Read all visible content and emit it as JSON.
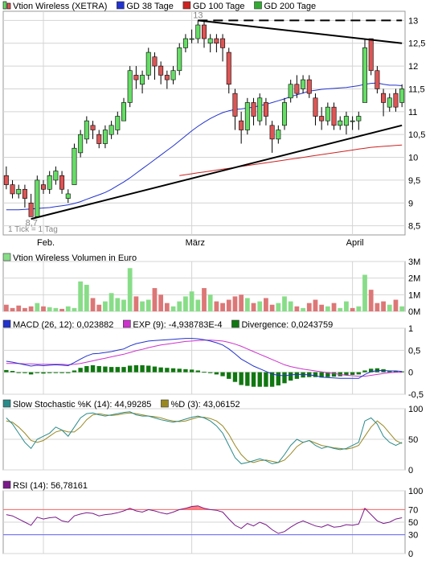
{
  "colors": {
    "up": "#66dd66",
    "down": "#dd5555",
    "gd38": "#2233cc",
    "gd100": "#cc2222",
    "gd200": "#33aa33",
    "grid": "#d4d4d4",
    "volume_up": "#88dd88",
    "volume_down": "#dd7777",
    "macd": "#2233cc",
    "exp": "#cc33cc",
    "divergence": "#117711",
    "slow_k": "#2a8a8a",
    "slow_d": "#998822",
    "rsi": "#7a1a8a",
    "rsi_overbought": "#ff6666",
    "rsi_oversold": "#6666ff"
  },
  "price_panel": {
    "legend": [
      {
        "label": "Vtion Wireless (XETRA)",
        "icon": "candle-legend-icon"
      },
      {
        "label": "GD 38 Tage",
        "color": "#2233cc"
      },
      {
        "label": "GD 100 Tage",
        "color": "#cc2222"
      },
      {
        "label": "GD 200 Tage",
        "color": "#33aa33"
      }
    ],
    "note": "1 Tick = 1 Tag",
    "low_label": "8,7",
    "high_label": "13",
    "y_ticks": [
      "13",
      "12,5",
      "12",
      "11,5",
      "11",
      "10,5",
      "10",
      "9,5",
      "9",
      "8,5"
    ],
    "x_labels": [
      "Feb.",
      "März",
      "April"
    ]
  },
  "volume_panel": {
    "title": "Vtion Wireless Volumen in Euro",
    "y_ticks": [
      "3M",
      "2M",
      "1M",
      "0M"
    ]
  },
  "macd_panel": {
    "legend": [
      {
        "label": "MACD (26, 12): 0,023882",
        "color": "#2233cc"
      },
      {
        "label": "EXP (9): -4,938783E-4",
        "color": "#cc33cc"
      },
      {
        "label": "Divergence: 0,0243759",
        "color": "#117711"
      }
    ],
    "y_ticks": [
      "1",
      "0,5",
      "0",
      "-0,5"
    ]
  },
  "stoch_panel": {
    "legend": [
      {
        "label": "Slow Stochastic %K (14): 44,99285",
        "color": "#2a8a8a"
      },
      {
        "label": "%D (3): 43,06152",
        "color": "#998822"
      }
    ],
    "y_ticks": [
      "100",
      "50",
      "0"
    ]
  },
  "rsi_panel": {
    "legend": [
      {
        "label": "RSI (14): 56,78161",
        "color": "#7a1a8a"
      }
    ],
    "y_ticks": [
      "100",
      "70",
      "50",
      "30",
      "0"
    ]
  },
  "chart_data": {
    "type": "candlestick",
    "price": {
      "ylim": [
        8.3,
        13.2
      ],
      "x_labels": [
        {
          "label": "Feb.",
          "index": 6
        },
        {
          "label": "März",
          "index": 30
        },
        {
          "label": "April",
          "index": 56
        }
      ],
      "candles": [
        [
          9.6,
          9.4,
          9.8,
          9.3
        ],
        [
          9.4,
          9.2,
          9.5,
          9.1
        ],
        [
          9.2,
          9.3,
          9.4,
          9.1
        ],
        [
          9.3,
          9.1,
          9.4,
          8.9
        ],
        [
          9.0,
          8.7,
          9.2,
          8.7
        ],
        [
          8.7,
          9.5,
          9.6,
          8.7
        ],
        [
          9.4,
          9.3,
          9.5,
          9.2
        ],
        [
          9.3,
          9.6,
          9.7,
          9.2
        ],
        [
          9.5,
          9.7,
          9.8,
          9.4
        ],
        [
          9.6,
          9.3,
          9.7,
          9.2
        ],
        [
          9.1,
          9.2,
          9.3,
          9.0
        ],
        [
          9.4,
          10.2,
          10.3,
          9.4
        ],
        [
          10.1,
          10.5,
          10.6,
          10.0
        ],
        [
          10.4,
          10.8,
          10.9,
          10.3
        ],
        [
          10.7,
          10.6,
          10.8,
          10.4
        ],
        [
          10.5,
          10.3,
          10.6,
          10.2
        ],
        [
          10.3,
          10.6,
          10.7,
          10.2
        ],
        [
          10.5,
          10.7,
          10.8,
          10.4
        ],
        [
          10.6,
          10.9,
          11.0,
          10.5
        ],
        [
          10.8,
          11.2,
          11.3,
          10.8
        ],
        [
          11.2,
          11.9,
          12.0,
          11.1
        ],
        [
          11.8,
          11.7,
          12.0,
          11.5
        ],
        [
          11.6,
          11.8,
          11.9,
          11.4
        ],
        [
          11.8,
          12.3,
          12.4,
          11.7
        ],
        [
          12.2,
          12.0,
          12.3,
          11.7
        ],
        [
          12.0,
          11.8,
          12.1,
          11.6
        ],
        [
          11.8,
          11.7,
          11.9,
          11.5
        ],
        [
          11.7,
          11.9,
          12.0,
          11.6
        ],
        [
          11.9,
          12.4,
          12.5,
          11.8
        ],
        [
          12.4,
          12.6,
          12.7,
          12.3
        ],
        [
          12.6,
          12.6,
          12.8,
          12.5
        ],
        [
          12.6,
          12.9,
          13.0,
          12.5
        ],
        [
          12.9,
          12.6,
          13.0,
          12.4
        ],
        [
          12.5,
          12.6,
          12.7,
          12.3
        ],
        [
          12.6,
          12.5,
          12.7,
          12.3
        ],
        [
          12.6,
          12.4,
          12.7,
          12.1
        ],
        [
          12.3,
          11.6,
          12.4,
          11.4
        ],
        [
          11.4,
          10.9,
          11.5,
          10.6
        ],
        [
          10.8,
          10.6,
          11.0,
          10.3
        ],
        [
          10.6,
          11.2,
          11.3,
          10.5
        ],
        [
          11.2,
          10.9,
          11.3,
          10.7
        ],
        [
          10.8,
          11.3,
          11.4,
          10.7
        ],
        [
          11.2,
          10.9,
          11.3,
          10.7
        ],
        [
          10.7,
          10.4,
          10.8,
          10.1
        ],
        [
          10.4,
          10.6,
          10.7,
          10.3
        ],
        [
          10.7,
          11.2,
          11.3,
          10.6
        ],
        [
          11.3,
          11.6,
          11.7,
          11.2
        ],
        [
          11.6,
          11.4,
          11.8,
          11.3
        ],
        [
          11.5,
          11.7,
          11.8,
          11.4
        ],
        [
          11.7,
          11.4,
          11.8,
          11.3
        ],
        [
          11.3,
          10.9,
          11.4,
          10.7
        ],
        [
          10.9,
          10.8,
          11.1,
          10.6
        ],
        [
          10.8,
          11.1,
          11.2,
          10.7
        ],
        [
          11.1,
          10.7,
          11.2,
          10.6
        ],
        [
          10.7,
          10.8,
          10.9,
          10.6
        ],
        [
          10.7,
          10.9,
          11.0,
          10.5
        ],
        [
          10.8,
          10.8,
          10.9,
          10.6
        ],
        [
          10.8,
          10.9,
          11.0,
          10.6
        ],
        [
          11.2,
          12.4,
          12.6,
          11.2
        ],
        [
          12.6,
          11.9,
          12.6,
          11.8
        ],
        [
          11.9,
          11.5,
          12.0,
          11.4
        ],
        [
          11.4,
          11.2,
          11.5,
          10.9
        ],
        [
          11.1,
          11.3,
          11.4,
          11.0
        ],
        [
          11.4,
          11.1,
          11.5,
          11.0
        ],
        [
          11.2,
          11.5,
          11.6,
          11.1
        ]
      ],
      "gd38": [
        8.85,
        8.85,
        8.85,
        8.86,
        8.87,
        8.88,
        8.89,
        8.9,
        8.92,
        8.94,
        8.96,
        8.99,
        9.03,
        9.08,
        9.13,
        9.18,
        9.23,
        9.3,
        9.38,
        9.46,
        9.55,
        9.65,
        9.75,
        9.85,
        9.95,
        10.05,
        10.15,
        10.25,
        10.36,
        10.47,
        10.58,
        10.68,
        10.77,
        10.85,
        10.92,
        10.98,
        11.02,
        11.05,
        11.06,
        11.08,
        11.1,
        11.13,
        11.16,
        11.2,
        11.24,
        11.28,
        11.33,
        11.37,
        11.41,
        11.45,
        11.47,
        11.49,
        11.5,
        11.51,
        11.52,
        11.53,
        11.55,
        11.57,
        11.6,
        11.62,
        11.63,
        11.6,
        11.58,
        11.58,
        11.57
      ],
      "gd100_start_index": 28,
      "gd100": [
        9.6,
        9.62,
        9.64,
        9.66,
        9.68,
        9.7,
        9.72,
        9.74,
        9.76,
        9.78,
        9.8,
        9.82,
        9.84,
        9.86,
        9.88,
        9.9,
        9.92,
        9.94,
        9.96,
        9.98,
        10.0,
        10.02,
        10.04,
        10.06,
        10.08,
        10.1,
        10.12,
        10.14,
        10.16,
        10.18,
        10.2,
        10.22,
        10.23,
        10.24,
        10.25,
        10.26,
        10.27
      ],
      "trendlines": [
        {
          "from": [
            4,
            8.65
          ],
          "to": [
            64,
            10.7
          ],
          "style": "solid"
        },
        {
          "from": [
            31,
            13.0
          ],
          "to": [
            64,
            12.5
          ],
          "style": "solid"
        },
        {
          "from": [
            31,
            13.0
          ],
          "to": [
            64,
            13.0
          ],
          "style": "dashed"
        }
      ]
    },
    "volume": {
      "ylim": [
        0,
        3.0
      ],
      "values": [
        0.4,
        0.2,
        0.35,
        0.2,
        0.3,
        0.5,
        0.3,
        0.25,
        0.2,
        0.15,
        0.3,
        0.2,
        1.8,
        1.6,
        0.8,
        0.4,
        0.6,
        1.1,
        0.8,
        0.7,
        2.6,
        0.9,
        0.6,
        0.7,
        1.4,
        1.0,
        0.5,
        0.3,
        0.6,
        0.9,
        1.2,
        0.7,
        1.4,
        1.0,
        0.6,
        0.5,
        0.7,
        0.9,
        1.0,
        0.8,
        0.5,
        0.6,
        0.8,
        0.4,
        0.5,
        0.9,
        0.6,
        0.3,
        0.2,
        0.5,
        0.7,
        0.4,
        0.3,
        0.5,
        0.2,
        0.6,
        0.2,
        0.3,
        2.2,
        1.3,
        0.5,
        0.6,
        0.4,
        0.7,
        0.3
      ],
      "up": [
        false,
        false,
        false,
        false,
        false,
        true,
        false,
        true,
        true,
        false,
        true,
        true,
        true,
        true,
        false,
        false,
        true,
        true,
        true,
        true,
        true,
        false,
        true,
        true,
        false,
        false,
        false,
        true,
        true,
        true,
        true,
        true,
        false,
        true,
        false,
        false,
        false,
        false,
        false,
        true,
        false,
        true,
        false,
        false,
        true,
        true,
        true,
        false,
        true,
        false,
        false,
        false,
        true,
        false,
        true,
        true,
        false,
        true,
        true,
        false,
        false,
        false,
        true,
        false,
        true
      ]
    },
    "macd": {
      "ylim": [
        -0.5,
        1.0
      ],
      "macd": [
        0.25,
        0.23,
        0.2,
        0.17,
        0.14,
        0.16,
        0.15,
        0.16,
        0.17,
        0.16,
        0.15,
        0.22,
        0.3,
        0.37,
        0.42,
        0.43,
        0.45,
        0.47,
        0.5,
        0.53,
        0.6,
        0.65,
        0.68,
        0.71,
        0.72,
        0.73,
        0.74,
        0.75,
        0.76,
        0.77,
        0.77,
        0.76,
        0.74,
        0.71,
        0.67,
        0.62,
        0.53,
        0.42,
        0.3,
        0.22,
        0.14,
        0.08,
        0.02,
        -0.04,
        -0.07,
        -0.08,
        -0.06,
        -0.05,
        -0.05,
        -0.06,
        -0.08,
        -0.11,
        -0.12,
        -0.13,
        -0.14,
        -0.14,
        -0.14,
        -0.14,
        -0.05,
        0.01,
        0.04,
        0.04,
        0.03,
        0.03,
        0.02
      ],
      "exp": [
        0.2,
        0.2,
        0.2,
        0.19,
        0.19,
        0.18,
        0.18,
        0.18,
        0.18,
        0.18,
        0.17,
        0.18,
        0.2,
        0.23,
        0.26,
        0.29,
        0.32,
        0.35,
        0.38,
        0.41,
        0.45,
        0.49,
        0.52,
        0.56,
        0.59,
        0.62,
        0.64,
        0.66,
        0.68,
        0.7,
        0.71,
        0.72,
        0.73,
        0.73,
        0.72,
        0.71,
        0.68,
        0.64,
        0.59,
        0.53,
        0.47,
        0.41,
        0.35,
        0.29,
        0.23,
        0.17,
        0.13,
        0.1,
        0.07,
        0.05,
        0.03,
        0.01,
        -0.01,
        -0.03,
        -0.05,
        -0.07,
        -0.08,
        -0.09,
        -0.09,
        -0.07,
        -0.05,
        -0.03,
        -0.01,
        0.0,
        0.0
      ]
    },
    "stochastic": {
      "ylim": [
        0,
        100
      ],
      "k": [
        85,
        75,
        60,
        45,
        35,
        50,
        55,
        60,
        70,
        65,
        55,
        70,
        85,
        92,
        93,
        90,
        88,
        90,
        92,
        94,
        95,
        90,
        88,
        88,
        85,
        82,
        80,
        78,
        80,
        83,
        86,
        88,
        85,
        80,
        72,
        60,
        40,
        20,
        10,
        12,
        15,
        18,
        15,
        10,
        12,
        25,
        40,
        50,
        45,
        48,
        40,
        35,
        38,
        35,
        33,
        35,
        40,
        45,
        80,
        85,
        75,
        55,
        45,
        40,
        45
      ],
      "d": [
        80,
        78,
        70,
        60,
        48,
        45,
        48,
        55,
        62,
        65,
        62,
        62,
        70,
        82,
        90,
        92,
        90,
        89,
        90,
        92,
        93,
        92,
        90,
        88,
        87,
        85,
        82,
        80,
        79,
        80,
        83,
        86,
        86,
        84,
        80,
        72,
        58,
        40,
        25,
        15,
        12,
        15,
        16,
        14,
        12,
        16,
        26,
        38,
        45,
        48,
        44,
        40,
        38,
        36,
        35,
        34,
        36,
        40,
        55,
        70,
        80,
        72,
        60,
        48,
        43
      ]
    },
    "rsi": {
      "ylim": [
        0,
        100
      ],
      "values": [
        62,
        60,
        55,
        50,
        45,
        58,
        55,
        57,
        58,
        52,
        50,
        60,
        63,
        65,
        64,
        60,
        62,
        63,
        65,
        68,
        72,
        68,
        66,
        70,
        68,
        65,
        63,
        66,
        70,
        72,
        75,
        76,
        72,
        70,
        69,
        66,
        55,
        45,
        40,
        48,
        44,
        50,
        46,
        38,
        32,
        35,
        42,
        48,
        52,
        48,
        44,
        42,
        46,
        42,
        43,
        46,
        45,
        47,
        72,
        62,
        52,
        48,
        50,
        55,
        57
      ],
      "overbought": 70,
      "oversold": 30
    }
  }
}
